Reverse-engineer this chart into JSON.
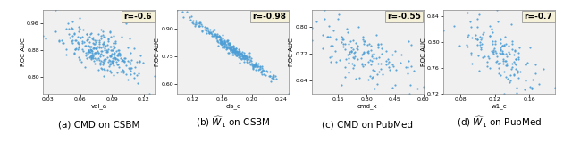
{
  "plots": [
    {
      "r": "r=-0.6",
      "xlabel": "val_a",
      "ylabel": "ROC AUC",
      "xlim": [
        0.025,
        0.13
      ],
      "ylim": [
        0.75,
        1.0
      ],
      "x_range": [
        0.025,
        0.13
      ],
      "y_range": [
        0.75,
        1.0
      ],
      "n_points": 300,
      "seed": 42,
      "corr": -0.6,
      "caption": "(a) CMD on CSBM"
    },
    {
      "r": "r=-0.98",
      "xlabel": "cls_c",
      "ylabel": "ROC AUC",
      "xlim": [
        0.1,
        0.25
      ],
      "ylim": [
        0.55,
        1.0
      ],
      "x_range": [
        0.1,
        0.25
      ],
      "y_range": [
        0.55,
        1.0
      ],
      "n_points": 300,
      "seed": 43,
      "corr": -0.98,
      "caption": "(b) $\\widehat{W}_1$ on CSBM"
    },
    {
      "r": "r=-0.55",
      "xlabel": "cmd_x",
      "ylabel": "ROC AUC",
      "xlim": [
        0.01,
        0.6
      ],
      "ylim": [
        0.6,
        0.85
      ],
      "x_range": [
        0.01,
        0.6
      ],
      "y_range": [
        0.6,
        0.85
      ],
      "n_points": 150,
      "seed": 44,
      "corr": -0.55,
      "caption": "(c) CMD on PubMed"
    },
    {
      "r": "r=-0.7",
      "xlabel": "w1_c",
      "ylabel": "ROC AUC",
      "xlim": [
        0.06,
        0.19
      ],
      "ylim": [
        0.72,
        0.85
      ],
      "x_range": [
        0.06,
        0.19
      ],
      "y_range": [
        0.72,
        0.85
      ],
      "n_points": 150,
      "seed": 45,
      "corr": -0.7,
      "caption": "(d) $\\widehat{W}_1$ on PubMed"
    }
  ],
  "dot_color": "#4d9ed6",
  "dot_size": 2.5,
  "annotation_bg": "#f5f0d8",
  "annotation_fontsize": 6.5,
  "caption_fontsize": 7.5,
  "tick_fontsize": 4.5,
  "label_fontsize": 5.0,
  "fig_width": 6.4,
  "fig_height": 1.61,
  "axes_bg": "#f0f0f0"
}
